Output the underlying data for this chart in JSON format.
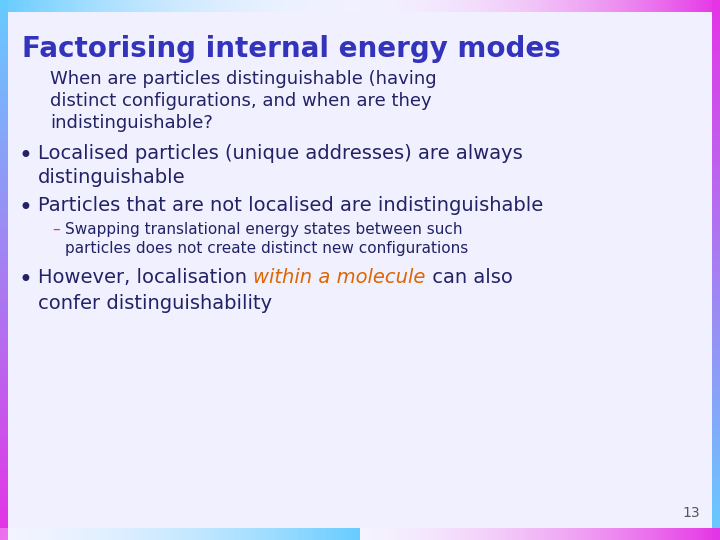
{
  "title": "Factorising internal energy modes",
  "title_color": "#3333bb",
  "background_color": "#f0f0ff",
  "slide_number": "13",
  "subtitle_text_lines": [
    "When are particles distinguishable (having",
    "distinct configurations, and when are they",
    "indistinguishable?"
  ],
  "subtitle_color": "#222266",
  "bullet_color": "#222266",
  "bullet_points": [
    [
      "Localised particles (unique addresses) are always",
      "distinguishable"
    ],
    [
      "Particles that are not localised are indistinguishable"
    ]
  ],
  "sub_bullet_lines": [
    "Swapping translational energy states between such",
    "particles does not create distinct new configurations"
  ],
  "sub_bullet_dash_color": "#cc4444",
  "sub_bullet_color": "#222266",
  "last_bullet_before": "However, localisation ",
  "last_bullet_highlight": "within a molecule",
  "last_bullet_after": " can also",
  "last_bullet_line2": "confer distinguishability",
  "highlight_color": "#dd6600",
  "font_family": "Comic Sans MS",
  "title_fontsize": 20,
  "subtitle_fontsize": 13,
  "bullet_fontsize": 14,
  "sub_bullet_fontsize": 11
}
